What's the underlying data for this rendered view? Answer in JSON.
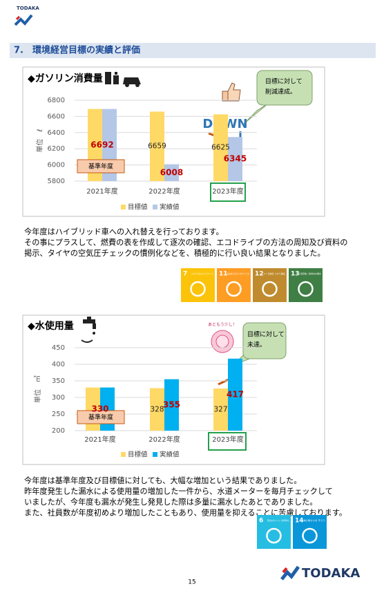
{
  "header": {
    "logo": "TODAKA"
  },
  "section_title": "7.　環境経営目標の実績と評価",
  "chart_data": [
    {
      "type": "bar",
      "title": "◆ガソリン消費量",
      "ylabel": "単位　ℓ",
      "categories": [
        "2021年度",
        "2022年度",
        "2023年度"
      ],
      "series": [
        {
          "name": "目標値",
          "color": "#ffd966",
          "values": [
            6692,
            6659,
            6625
          ],
          "value_labels": [
            null,
            "6659",
            "6625"
          ]
        },
        {
          "name": "実績値",
          "color": "#b4c7e7",
          "values": [
            6692,
            6008,
            6345
          ],
          "value_labels": [
            "6692",
            "6008",
            "6345"
          ]
        }
      ],
      "ylim": [
        5800,
        6800
      ],
      "yticks": [
        5800,
        6000,
        6200,
        6400,
        6600,
        6800
      ],
      "grid": true,
      "legend": "bottom",
      "annotations": {
        "base_year": "基準年度",
        "down": "DOWN",
        "callout": [
          "目標に対して",
          "削減達成。"
        ]
      }
    },
    {
      "type": "bar",
      "title": "◆水使用量",
      "ylabel": "単位　㎥",
      "categories": [
        "2021年度",
        "2022年度",
        "2023年度"
      ],
      "series": [
        {
          "name": "目標値",
          "color": "#ffd966",
          "values": [
            330,
            328,
            327
          ],
          "value_labels": [
            null,
            "328",
            "327"
          ]
        },
        {
          "name": "実績値",
          "color": "#00b0f0",
          "values": [
            330,
            355,
            417
          ],
          "value_labels": [
            "330",
            "355",
            "417"
          ]
        }
      ],
      "ylim": [
        200,
        450
      ],
      "yticks": [
        200,
        250,
        300,
        350,
        400,
        450
      ],
      "grid": true,
      "legend": "bottom",
      "annotations": {
        "base_year": "基準年度",
        "sticker": "あともう少し！",
        "callout": [
          "目標に対して",
          "未達。"
        ]
      }
    }
  ],
  "paragraphs": [
    [
      "今年度はハイブリッド車への入れ替えを行っております。",
      "その事にプラスして、燃費の表を作成して逐次の確認、エコドライブの方法の周知及び資料の",
      "掲示、タイヤの空気圧チェックの慣例化などを、積極的に行い良い結果となりました。"
    ],
    [
      "今年度は基準年度及び目標値に対しても、大幅な増加という結果でありました。",
      "昨年度発生した漏水による使用量の増加した一件から、水道メーターを毎月チェックして",
      "いましたが、今年度も漏水が発生し発見した際は多量に漏水したあとでありました。",
      "また、社員数が年度初めより増加したこともあり、使用量を抑えることに苦慮しております。"
    ]
  ],
  "sdgs": [
    [
      {
        "number": "7",
        "text": "エネルギーをみんなに そしてクリーンに",
        "color": "#fcc30b"
      },
      {
        "number": "11",
        "text": "住み続けられる まちづくりを",
        "color": "#fd9d24"
      },
      {
        "number": "12",
        "text": "つくる責任 つかう責任",
        "color": "#bf8b2e"
      },
      {
        "number": "13",
        "text": "気候変動に 具体的な対策を",
        "color": "#3f7e44"
      }
    ],
    [
      {
        "number": "6",
        "text": "安全な水とトイレ を世界中に",
        "color": "#26bde2"
      },
      {
        "number": "14",
        "text": "海の豊かさを 守ろう",
        "color": "#0a97d9"
      }
    ]
  ],
  "page_number": "15",
  "footer": {
    "logo": "TODAKA"
  }
}
